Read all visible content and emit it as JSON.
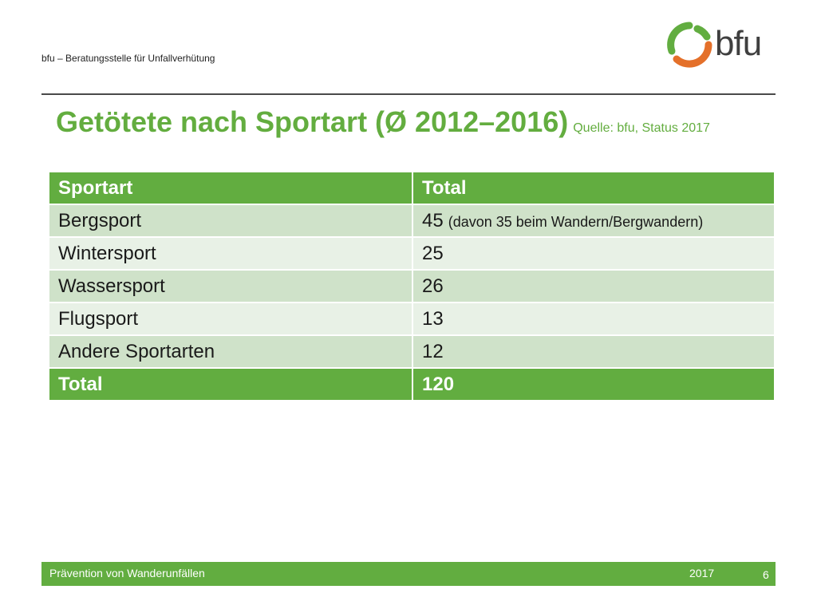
{
  "header": {
    "organization": "bfu – Beratungsstelle für Unfallverhütung",
    "logo_text": "bfu"
  },
  "title": {
    "main": "Getötete nach Sportart (Ø 2012–2016)",
    "source": "Quelle: bfu, Status 2017"
  },
  "table": {
    "headers": [
      "Sportart",
      "Total"
    ],
    "rows": [
      {
        "sport": "Bergsport",
        "total": "45",
        "note": "(davon 35 beim Wandern/Bergwandern)"
      },
      {
        "sport": "Wintersport",
        "total": "25"
      },
      {
        "sport": "Wassersport",
        "total": "26"
      },
      {
        "sport": "Flugsport",
        "total": "13"
      },
      {
        "sport": "Andere Sportarten",
        "total": "12"
      }
    ],
    "total_row": {
      "label": "Total",
      "value": "120"
    }
  },
  "footer": {
    "topic": "Prävention von Wanderunfällen",
    "year": "2017",
    "page": "6"
  },
  "colors": {
    "brand_green": "#62ad40",
    "brand_orange": "#e4702a",
    "row_dark": "#cfe2c9",
    "row_light": "#e8f1e6"
  }
}
